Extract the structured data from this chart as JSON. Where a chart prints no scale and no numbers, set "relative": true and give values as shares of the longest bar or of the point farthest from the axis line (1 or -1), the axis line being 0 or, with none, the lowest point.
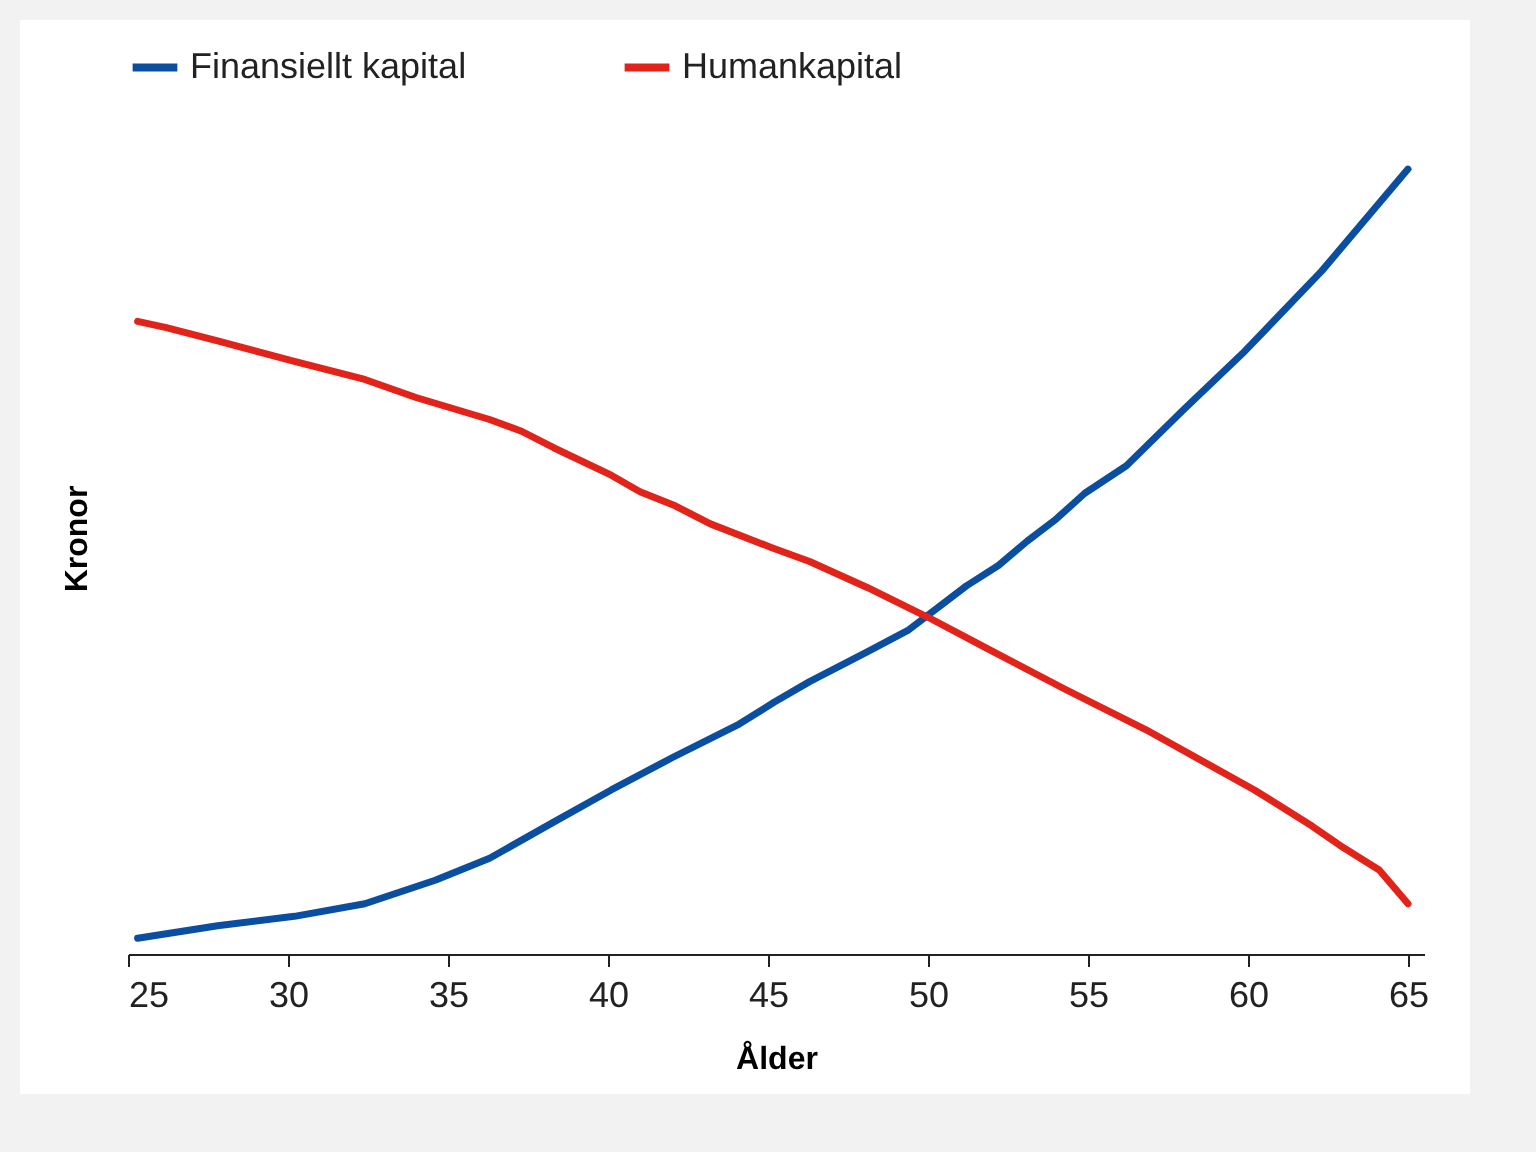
{
  "chart_data": {
    "type": "line",
    "xlabel": "Ålder",
    "ylabel": "Kronor",
    "relative": true,
    "xlim": [
      25,
      65.5
    ],
    "xticks": [
      25,
      30,
      35,
      40,
      45,
      50,
      55,
      60,
      65
    ],
    "legend": "top",
    "grid": false,
    "line_style": "solid",
    "marker": "none",
    "series": [
      {
        "name": "Finansiellt kapital",
        "color": "#0a4ea2",
        "x": [
          25.3,
          27.8,
          30.2,
          32.4,
          34.6,
          36.3,
          38.3,
          40.1,
          42.0,
          44.1,
          45.2,
          46.3,
          48.1,
          49.4,
          51.2,
          52.2,
          53.1,
          54.0,
          54.9,
          56.2,
          58.0,
          59.9,
          62.3,
          65.0
        ],
        "values": [
          0.02,
          0.036,
          0.048,
          0.064,
          0.094,
          0.122,
          0.168,
          0.209,
          0.25,
          0.293,
          0.321,
          0.347,
          0.385,
          0.413,
          0.469,
          0.495,
          0.526,
          0.554,
          0.587,
          0.622,
          0.694,
          0.768,
          0.87,
          1
        ]
      },
      {
        "name": "Humankapital",
        "color": "#e2231a",
        "x": [
          25.3,
          26.2,
          27.8,
          30.2,
          32.4,
          34.0,
          36.3,
          37.3,
          38.3,
          40.1,
          41.0,
          42.1,
          43.2,
          45.1,
          46.3,
          48.1,
          50.0,
          51.9,
          54.3,
          56.8,
          60.2,
          62.0,
          63.0,
          64.1,
          65.0
        ],
        "values": [
          0.806,
          0.798,
          0.781,
          0.755,
          0.732,
          0.709,
          0.681,
          0.666,
          0.645,
          0.61,
          0.589,
          0.571,
          0.548,
          0.518,
          0.5,
          0.467,
          0.429,
          0.388,
          0.337,
          0.286,
          0.209,
          0.163,
          0.135,
          0.107,
          0.064
        ]
      }
    ]
  }
}
